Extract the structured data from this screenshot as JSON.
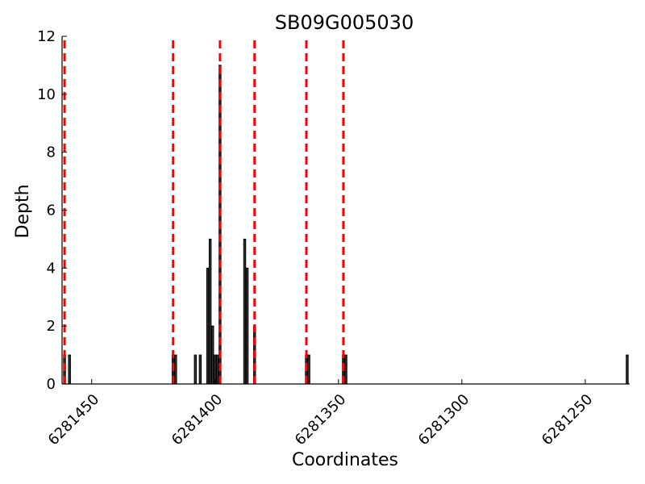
{
  "chart_data": {
    "type": "bar",
    "title": "SB09G005030",
    "xlabel": "Coordinates",
    "ylabel": "Depth",
    "xlim": [
      6281462,
      6281232
    ],
    "ylim": [
      0,
      12
    ],
    "x_ticks": [
      6281450,
      6281400,
      6281350,
      6281300,
      6281250
    ],
    "y_ticks": [
      0,
      2,
      4,
      6,
      8,
      10,
      12
    ],
    "grid": false,
    "bar_color": "#333333",
    "boundary_color": "#ff0000",
    "bars": [
      {
        "x": 6281461,
        "y": 1
      },
      {
        "x": 6281459,
        "y": 1
      },
      {
        "x": 6281417,
        "y": 1
      },
      {
        "x": 6281416,
        "y": 1
      },
      {
        "x": 6281408,
        "y": 1
      },
      {
        "x": 6281406,
        "y": 1
      },
      {
        "x": 6281403,
        "y": 4
      },
      {
        "x": 6281402,
        "y": 5
      },
      {
        "x": 6281401,
        "y": 2
      },
      {
        "x": 6281400,
        "y": 1
      },
      {
        "x": 6281399,
        "y": 1
      },
      {
        "x": 6281398,
        "y": 11
      },
      {
        "x": 6281388,
        "y": 5
      },
      {
        "x": 6281387,
        "y": 4
      },
      {
        "x": 6281384,
        "y": 2
      },
      {
        "x": 6281363,
        "y": 1
      },
      {
        "x": 6281362,
        "y": 1
      },
      {
        "x": 6281348,
        "y": 1
      },
      {
        "x": 6281347,
        "y": 1
      },
      {
        "x": 6281233,
        "y": 1
      }
    ],
    "boundaries": [
      6281461,
      6281417,
      6281398,
      6281384,
      6281363,
      6281348
    ]
  }
}
